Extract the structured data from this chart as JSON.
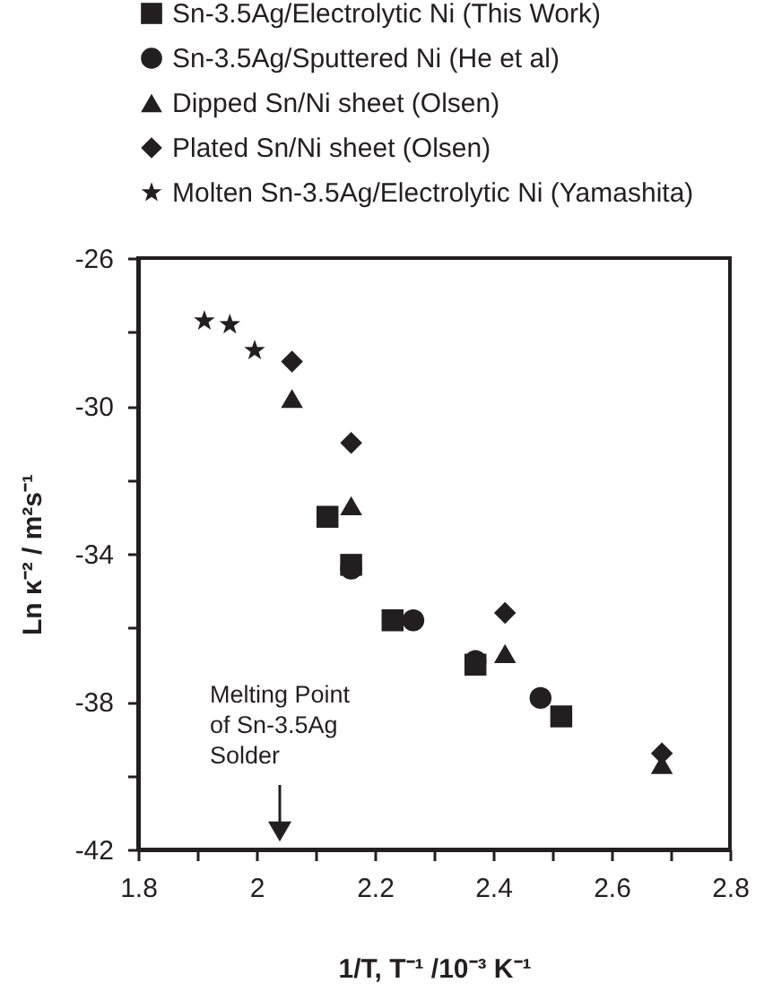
{
  "chart_data": {
    "type": "scatter",
    "xlabel": "1/T, T⁻¹ /10⁻³ K⁻¹",
    "ylabel": "Ln κ⁻² / m²s⁻¹",
    "series": [
      {
        "name": "Sn-3.5Ag/Electrolytic Ni (This Work)",
        "color": "#231f20",
        "marker": "square",
        "x": [
          2.12,
          2.16,
          2.23,
          2.37,
          2.515
        ],
        "values": [
          -33.0,
          -34.3,
          -35.8,
          -37.0,
          -38.4
        ]
      },
      {
        "name": "Sn-3.5Ag/Sputtered Ni (He et al)",
        "color": "#231f20",
        "marker": "circle",
        "x": [
          2.16,
          2.265,
          2.37,
          2.48
        ],
        "values": [
          -34.4,
          -35.8,
          -36.9,
          -37.9
        ]
      },
      {
        "name": "Dipped Sn/Ni sheet (Olsen)",
        "color": "#231f20",
        "marker": "triangle",
        "x": [
          2.06,
          2.16,
          2.42,
          2.685
        ],
        "values": [
          -29.8,
          -32.7,
          -36.7,
          -39.7
        ]
      },
      {
        "name": "Plated Sn/Ni sheet (Olsen)",
        "color": "#231f20",
        "marker": "diamond",
        "x": [
          2.06,
          2.16,
          2.42,
          2.685
        ],
        "values": [
          -28.8,
          -31.0,
          -35.6,
          -39.4
        ]
      },
      {
        "name": "Molten Sn-3.5Ag/Electrolytic Ni (Yamashita)",
        "color": "#231f20",
        "marker": "star",
        "x": [
          1.912,
          1.955,
          1.997
        ],
        "values": [
          -27.7,
          -27.8,
          -28.5
        ]
      }
    ],
    "xlim": [
      1.8,
      2.8
    ],
    "xticks": [
      1.8,
      {
        "value": 1.9,
        "label": null
      },
      2,
      {
        "value": 2.1,
        "label": null
      },
      2.2,
      {
        "value": 2.3,
        "label": null
      },
      2.4,
      {
        "value": 2.5,
        "label": null
      },
      2.6,
      {
        "value": 2.7,
        "label": null
      },
      2.8
    ],
    "ylim": [
      -42,
      -26
    ],
    "yticks": [
      -42,
      {
        "value": -40,
        "label": null
      },
      -38,
      {
        "value": -36,
        "label": null
      },
      -34,
      {
        "value": -32,
        "label": null
      },
      -30,
      {
        "value": -28,
        "label": null
      },
      -26
    ],
    "legend": "top",
    "annotations": [
      "Melting Point of Sn-3.5Ag Solder"
    ]
  }
}
